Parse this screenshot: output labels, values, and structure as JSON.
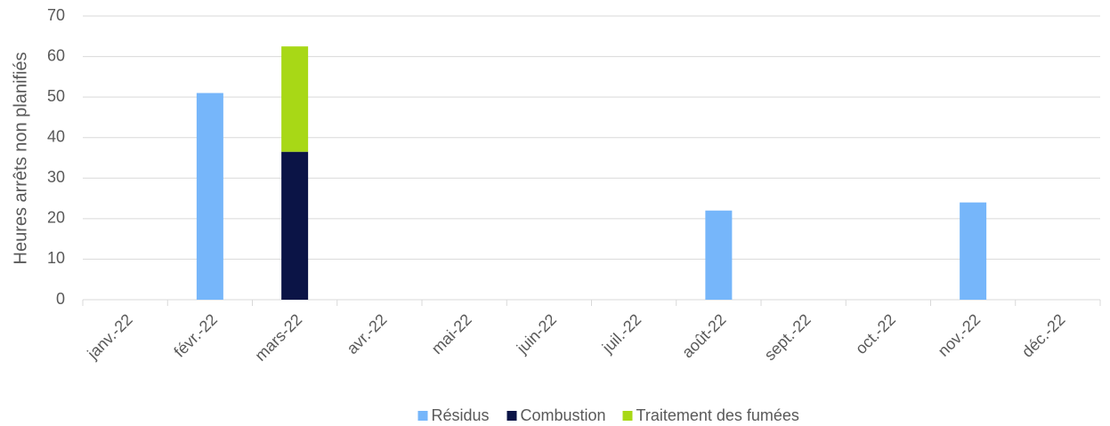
{
  "chart_data": {
    "type": "stacked_bar",
    "ylabel": "Heures arrêts non planifiés",
    "categories": [
      "janv.-22",
      "févr.-22",
      "mars-22",
      "avr.-22",
      "mai-22",
      "juin-22",
      "juil.-22",
      "août-22",
      "sept.-22",
      "oct.-22",
      "nov.-22",
      "déc.-22"
    ],
    "series": [
      {
        "name": "Résidus",
        "color": "#76b6fa",
        "values": [
          0,
          51,
          0,
          0,
          0,
          0,
          0,
          22,
          0,
          0,
          24,
          0
        ]
      },
      {
        "name": "Combustion",
        "color": "#0b1446",
        "values": [
          0,
          0,
          36.5,
          0,
          0,
          0,
          0,
          0,
          0,
          0,
          0,
          0
        ]
      },
      {
        "name": "Traitement des fumées",
        "color": "#a8d816",
        "values": [
          0,
          0,
          26,
          0,
          0,
          0,
          0,
          0,
          0,
          0,
          0,
          0
        ]
      }
    ],
    "ylim": [
      0,
      70
    ],
    "yticks": [
      0,
      10,
      20,
      30,
      40,
      50,
      60,
      70
    ],
    "grid": true,
    "legend": "bottom"
  }
}
